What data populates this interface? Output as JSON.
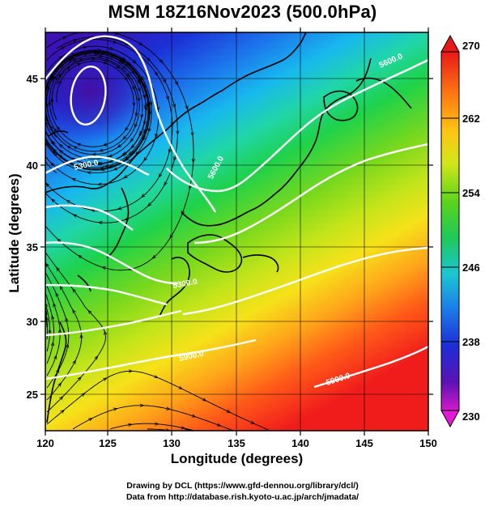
{
  "title": "MSM 18Z16Nov2023 (500.0hPa)",
  "xlabel": "Longitude (degrees)",
  "ylabel": "Latitude (degrees)",
  "credit_line1": "Drawing by DCL (https://www.gfd-dennou.org/library/dcl/)",
  "credit_line2": "Data from http://database.rish.kyoto-u.ac.jp/arch/jmadata/",
  "x_ticks": [
    "120",
    "125",
    "130",
    "135",
    "140",
    "145",
    "150"
  ],
  "y_ticks": [
    "25",
    "30",
    "35",
    "40",
    "45"
  ],
  "colorbar_ticks": [
    "270",
    "262",
    "254",
    "246",
    "238",
    "230"
  ],
  "contour_labels": [
    "5300.0",
    "5600.0",
    "5900.0",
    "5900.0",
    "5300.0",
    "5600.0"
  ],
  "colors": {
    "cold": "#2a1fa0",
    "mid": "#1ed24a",
    "warm": "#ff3a1a",
    "contour": "#ffffff",
    "coast": "#000000"
  },
  "chart_data": {
    "type": "heatmap",
    "title": "MSM 18Z16Nov2023 (500.0hPa)",
    "xlabel": "Longitude (degrees)",
    "ylabel": "Latitude (degrees)",
    "xlim": [
      120,
      150
    ],
    "ylim": [
      22.4,
      47.6
    ],
    "colorbar": {
      "min": 230,
      "max": 270,
      "ticks": [
        230,
        238,
        246,
        254,
        262,
        270
      ]
    },
    "contour_levels": [
      5300,
      5600,
      5900
    ],
    "contour_labels": [
      "5300.0",
      "5600.0",
      "5900.0"
    ],
    "fields": [
      "temperature (shaded)",
      "geopotential height (contours)",
      "wind (streamlines)"
    ]
  }
}
